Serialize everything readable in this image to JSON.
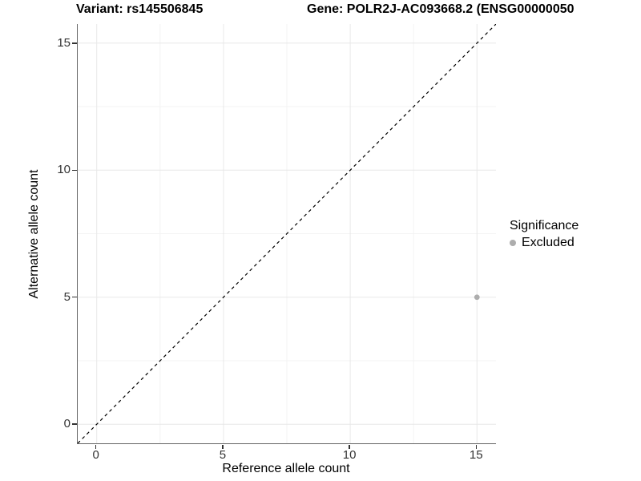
{
  "header": {
    "variant_title": "Variant: rs145506845",
    "gene_title": "Gene: POLR2J-AC093668.2 (ENSG00000050"
  },
  "chart_data": {
    "type": "scatter",
    "xlabel": "Reference allele count",
    "ylabel": "Alternative allele count",
    "xlim": [
      -0.75,
      15.75
    ],
    "ylim": [
      -0.75,
      15.75
    ],
    "x_ticks": [
      0,
      5,
      10,
      15
    ],
    "y_ticks": [
      0,
      5,
      10,
      15
    ],
    "minor_grid_positions": [
      2.5,
      7.5,
      12.5
    ],
    "grid": true,
    "points": [
      {
        "x": 15,
        "y": 5,
        "series": "Excluded"
      }
    ],
    "reference_line": {
      "equation": "y = x",
      "linestyle": "dashed",
      "color": "#000000"
    },
    "legend": {
      "title": "Significance",
      "position": "right",
      "entries": [
        {
          "label": "Excluded",
          "color": "#adadad"
        }
      ]
    },
    "colors": {
      "point": "#adadad",
      "grid_major": "#e8e8e8",
      "grid_minor": "#f3f3f3",
      "axis_line": "#666666",
      "tick_mark": "#333333",
      "tick_label": "#333333",
      "text": "#000000"
    }
  }
}
